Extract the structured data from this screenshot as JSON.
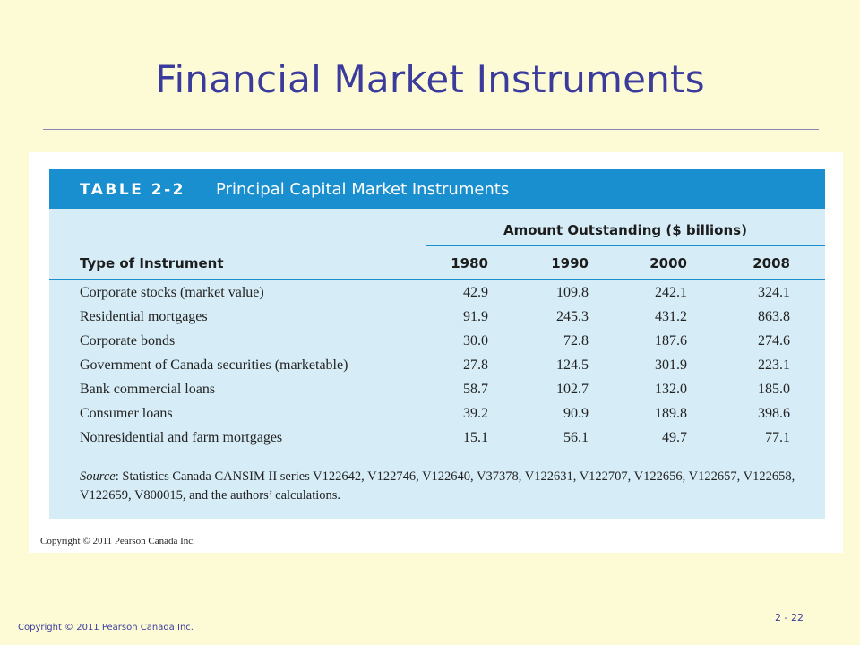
{
  "slide": {
    "title": "Financial Market Instruments",
    "footer_copyright": "Copyright © 2011 Pearson Canada Inc.",
    "page_number": "2 - 22"
  },
  "table": {
    "number": "TABLE 2-2",
    "caption": "Principal Capital Market Instruments",
    "amount_heading": "Amount Outstanding ($ billions)",
    "type_heading": "Type of Instrument",
    "years": [
      "1980",
      "1990",
      "2000",
      "2008"
    ],
    "rows": [
      {
        "name": "Corporate stocks (market value)",
        "values": [
          "42.9",
          "109.8",
          "242.1",
          "324.1"
        ]
      },
      {
        "name": "Residential mortgages",
        "values": [
          "91.9",
          "245.3",
          "431.2",
          "863.8"
        ]
      },
      {
        "name": "Corporate bonds",
        "values": [
          "30.0",
          "72.8",
          "187.6",
          "274.6"
        ]
      },
      {
        "name": "Government of Canada securities (marketable)",
        "values": [
          "27.8",
          "124.5",
          "301.9",
          "223.1"
        ]
      },
      {
        "name": "Bank commercial loans",
        "values": [
          "58.7",
          "102.7",
          "132.0",
          "185.0"
        ]
      },
      {
        "name": "Consumer loans",
        "values": [
          "39.2",
          "90.9",
          "189.8",
          "398.6"
        ]
      },
      {
        "name": "Nonresidential and farm mortgages",
        "values": [
          "15.1",
          "56.1",
          "49.7",
          "77.1"
        ]
      }
    ],
    "source_label": "Source",
    "source_text": ": Statistics Canada CANSIM II series V122642, V122746, V122640, V37378, V122631, V122707, V122656, V122657, V122658, V122659, V800015, and the authors’ calculations.",
    "figure_copyright": "Copyright © 2011 Pearson Canada Inc."
  },
  "colors": {
    "slide_background": "#fdfbd6",
    "title_color": "#3b3b9c",
    "table_header_bar": "#1a8fcf",
    "table_body": "#d6ecf6"
  }
}
